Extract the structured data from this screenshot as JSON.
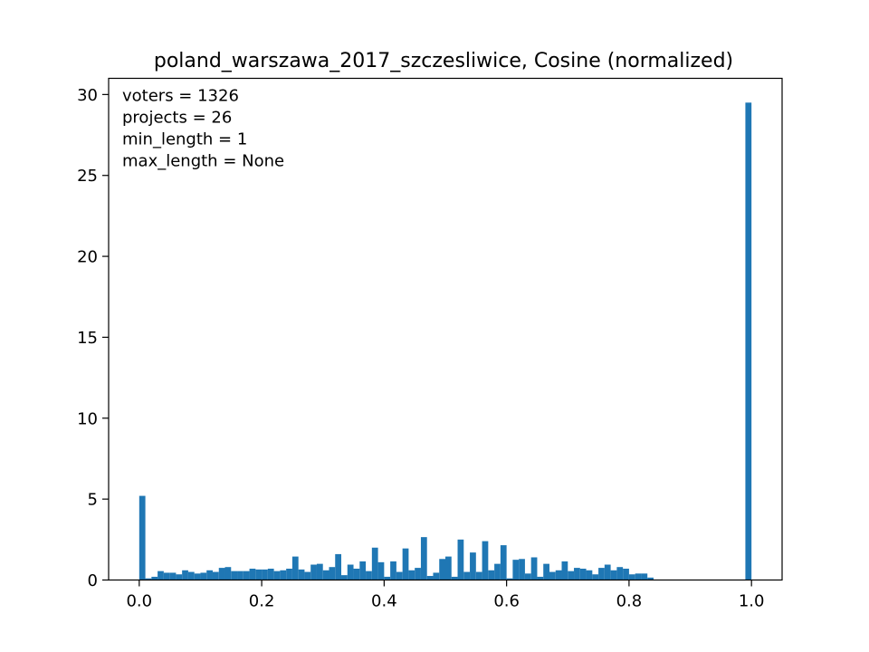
{
  "chart_data": {
    "type": "bar",
    "title": "poland_warszawa_2017_szczesliwice, Cosine (normalized)",
    "xlabel": "",
    "ylabel": "",
    "xlim": [
      -0.05,
      1.05
    ],
    "ylim": [
      0,
      31
    ],
    "x_ticks": [
      {
        "value": 0.0,
        "label": "0.0"
      },
      {
        "value": 0.2,
        "label": "0.2"
      },
      {
        "value": 0.4,
        "label": "0.4"
      },
      {
        "value": 0.6,
        "label": "0.6"
      },
      {
        "value": 0.8,
        "label": "0.8"
      },
      {
        "value": 1.0,
        "label": "1.0"
      }
    ],
    "y_ticks": [
      {
        "value": 0,
        "label": "0"
      },
      {
        "value": 5,
        "label": "5"
      },
      {
        "value": 10,
        "label": "10"
      },
      {
        "value": 15,
        "label": "15"
      },
      {
        "value": 20,
        "label": "20"
      },
      {
        "value": 25,
        "label": "25"
      },
      {
        "value": 30,
        "label": "30"
      }
    ],
    "bin_width": 0.01,
    "bin_start": 0.0,
    "values": [
      5.2,
      0.1,
      0.2,
      0.55,
      0.45,
      0.45,
      0.35,
      0.6,
      0.5,
      0.4,
      0.45,
      0.6,
      0.5,
      0.75,
      0.8,
      0.55,
      0.55,
      0.55,
      0.7,
      0.65,
      0.65,
      0.7,
      0.55,
      0.6,
      0.7,
      1.45,
      0.65,
      0.5,
      0.95,
      1.0,
      0.6,
      0.8,
      1.6,
      0.3,
      0.95,
      0.7,
      1.15,
      0.55,
      2.0,
      1.1,
      0.2,
      1.15,
      0.5,
      1.95,
      0.6,
      0.75,
      2.65,
      0.25,
      0.45,
      1.3,
      1.45,
      0.2,
      2.5,
      0.5,
      1.7,
      0.5,
      2.4,
      0.6,
      1.0,
      2.15,
      0.1,
      1.25,
      1.3,
      0.4,
      1.4,
      0.2,
      1.0,
      0.5,
      0.6,
      1.15,
      0.55,
      0.75,
      0.7,
      0.6,
      0.35,
      0.75,
      0.95,
      0.6,
      0.8,
      0.7,
      0.35,
      0.4,
      0.4,
      0.15,
      0,
      0,
      0,
      0,
      0,
      0,
      0,
      0,
      0,
      0,
      0,
      0,
      0,
      0,
      0,
      29.5
    ],
    "bar_color": "#1f77b4",
    "annotations": [
      "voters = 1326",
      "projects = 26",
      "min_length = 1",
      "max_length = None"
    ],
    "annotation_placement": "top-left",
    "grid": false,
    "legend": false
  }
}
